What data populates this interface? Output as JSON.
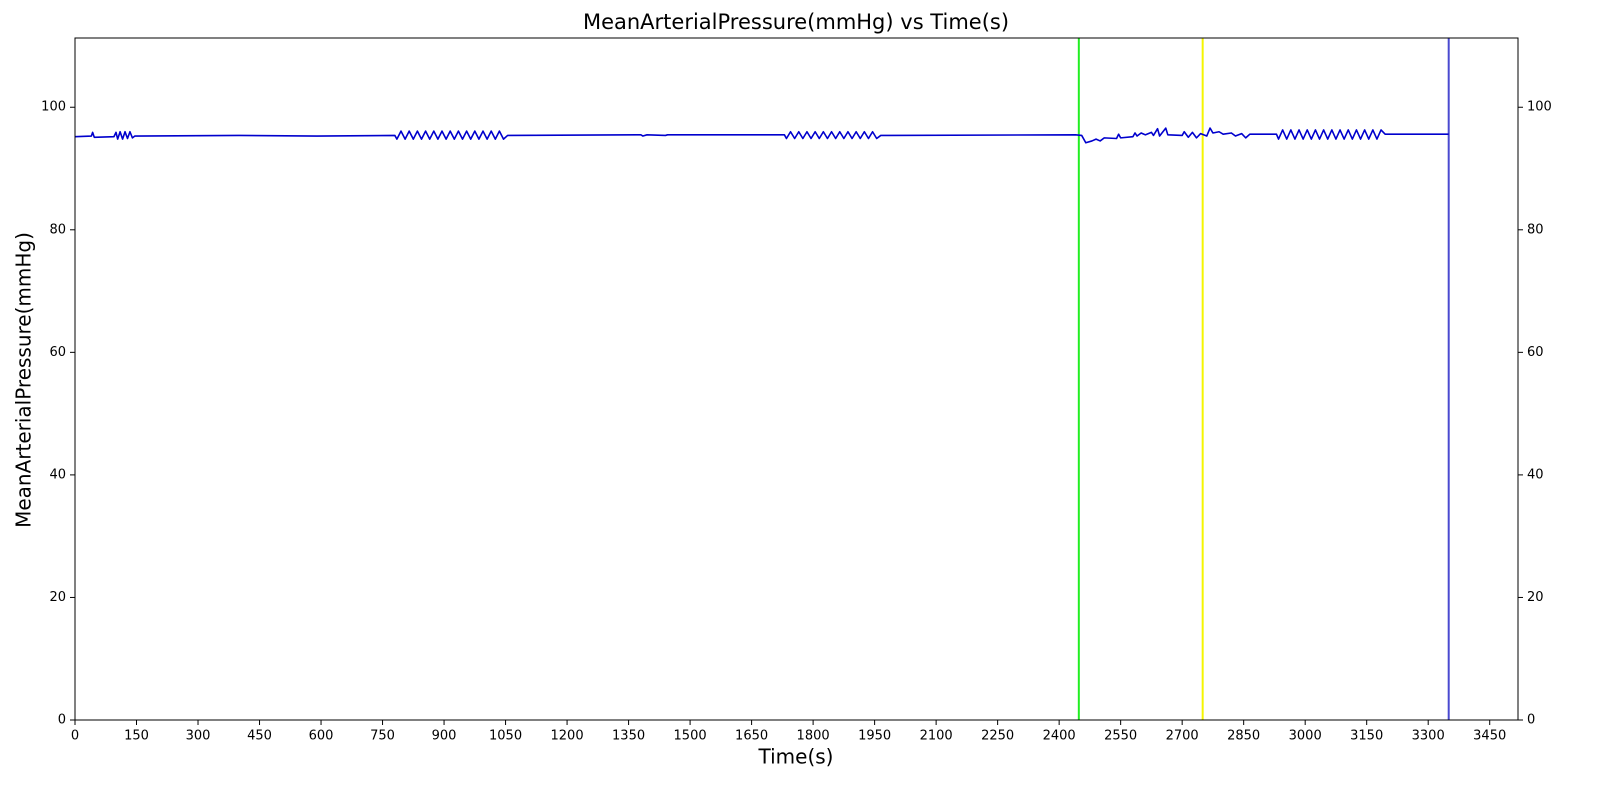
{
  "chart_data": {
    "type": "line",
    "title": "MeanArterialPressure(mmHg) vs Time(s)",
    "x_label": "Time(s)",
    "y_label": "MeanArterialPressure(mmHg)",
    "xlim": [
      0,
      3519
    ],
    "ylim": [
      0,
      111.3
    ],
    "y2lim": [
      0,
      111.3
    ],
    "xticks": [
      0,
      150,
      300,
      450,
      600,
      750,
      900,
      1050,
      1200,
      1350,
      1500,
      1650,
      1800,
      1950,
      2100,
      2250,
      2400,
      2550,
      2700,
      2850,
      3000,
      3150,
      3300,
      3450
    ],
    "yticks": [
      0,
      20,
      40,
      60,
      80,
      100
    ],
    "y2ticks": [
      0,
      20,
      40,
      60,
      80,
      100
    ],
    "grid": false,
    "x": [
      0,
      40,
      43,
      47,
      95,
      100,
      104,
      110,
      116,
      122,
      128,
      134,
      140,
      146,
      400,
      590,
      780,
      785,
      795,
      805,
      815,
      825,
      835,
      845,
      855,
      865,
      875,
      885,
      895,
      905,
      915,
      925,
      935,
      945,
      955,
      965,
      975,
      985,
      995,
      1005,
      1015,
      1025,
      1035,
      1045,
      1055,
      1380,
      1385,
      1395,
      1440,
      1445,
      1730,
      1735,
      1745,
      1755,
      1765,
      1775,
      1785,
      1795,
      1805,
      1815,
      1825,
      1835,
      1845,
      1855,
      1865,
      1875,
      1885,
      1895,
      1905,
      1915,
      1925,
      1935,
      1945,
      1955,
      1965,
      2440,
      2455,
      2465,
      2480,
      2490,
      2500,
      2510,
      2540,
      2545,
      2550,
      2580,
      2585,
      2590,
      2600,
      2610,
      2625,
      2630,
      2640,
      2645,
      2660,
      2665,
      2700,
      2705,
      2715,
      2725,
      2735,
      2745,
      2760,
      2768,
      2775,
      2790,
      2800,
      2820,
      2830,
      2845,
      2855,
      2865,
      2930,
      2935,
      2945,
      2955,
      2965,
      2975,
      2985,
      2995,
      3005,
      3015,
      3025,
      3035,
      3045,
      3055,
      3065,
      3075,
      3085,
      3095,
      3105,
      3115,
      3125,
      3135,
      3145,
      3155,
      3165,
      3175,
      3185,
      3195,
      3350
    ],
    "series": [
      {
        "name": "MeanArterialPressure(mmHg)",
        "color": "#0000cd",
        "values": [
          95.2,
          95.3,
          95.9,
          95.1,
          95.2,
          95.9,
          94.8,
          96.0,
          94.8,
          96.0,
          94.9,
          96.0,
          95.0,
          95.3,
          95.4,
          95.3,
          95.4,
          94.8,
          96.1,
          94.8,
          96.1,
          94.8,
          96.1,
          94.8,
          96.1,
          94.8,
          96.1,
          94.8,
          96.1,
          94.8,
          96.1,
          94.8,
          96.1,
          94.8,
          96.1,
          94.8,
          96.1,
          94.8,
          96.1,
          94.8,
          96.1,
          94.8,
          96.1,
          94.8,
          95.4,
          95.5,
          95.3,
          95.5,
          95.4,
          95.5,
          95.5,
          94.9,
          96.0,
          94.9,
          96.0,
          94.9,
          96.0,
          94.9,
          96.0,
          94.9,
          96.0,
          94.9,
          96.0,
          94.9,
          96.0,
          94.9,
          96.0,
          94.9,
          96.0,
          94.9,
          96.0,
          94.9,
          96.0,
          94.9,
          95.4,
          95.5,
          95.4,
          94.2,
          94.5,
          94.8,
          94.5,
          95.0,
          94.9,
          95.6,
          95.0,
          95.2,
          95.8,
          95.3,
          95.8,
          95.5,
          95.9,
          95.4,
          96.5,
          95.3,
          96.6,
          95.5,
          95.4,
          96.0,
          95.1,
          95.9,
          95.0,
          95.7,
          95.3,
          96.6,
          95.8,
          96.0,
          95.6,
          95.8,
          95.3,
          95.7,
          95.0,
          95.6,
          95.6,
          94.8,
          96.3,
          94.8,
          96.3,
          94.8,
          96.3,
          94.8,
          96.3,
          94.8,
          96.3,
          94.8,
          96.3,
          94.8,
          96.3,
          94.8,
          96.3,
          94.8,
          96.3,
          94.8,
          96.3,
          94.8,
          96.3,
          94.8,
          96.3,
          94.8,
          96.3,
          95.6,
          95.6
        ]
      }
    ],
    "vlines": [
      {
        "x": 2448,
        "color": "#22ee22"
      },
      {
        "x": 2750,
        "color": "#f5f500"
      },
      {
        "x": 3350,
        "color": "#4a4ad0"
      }
    ]
  }
}
